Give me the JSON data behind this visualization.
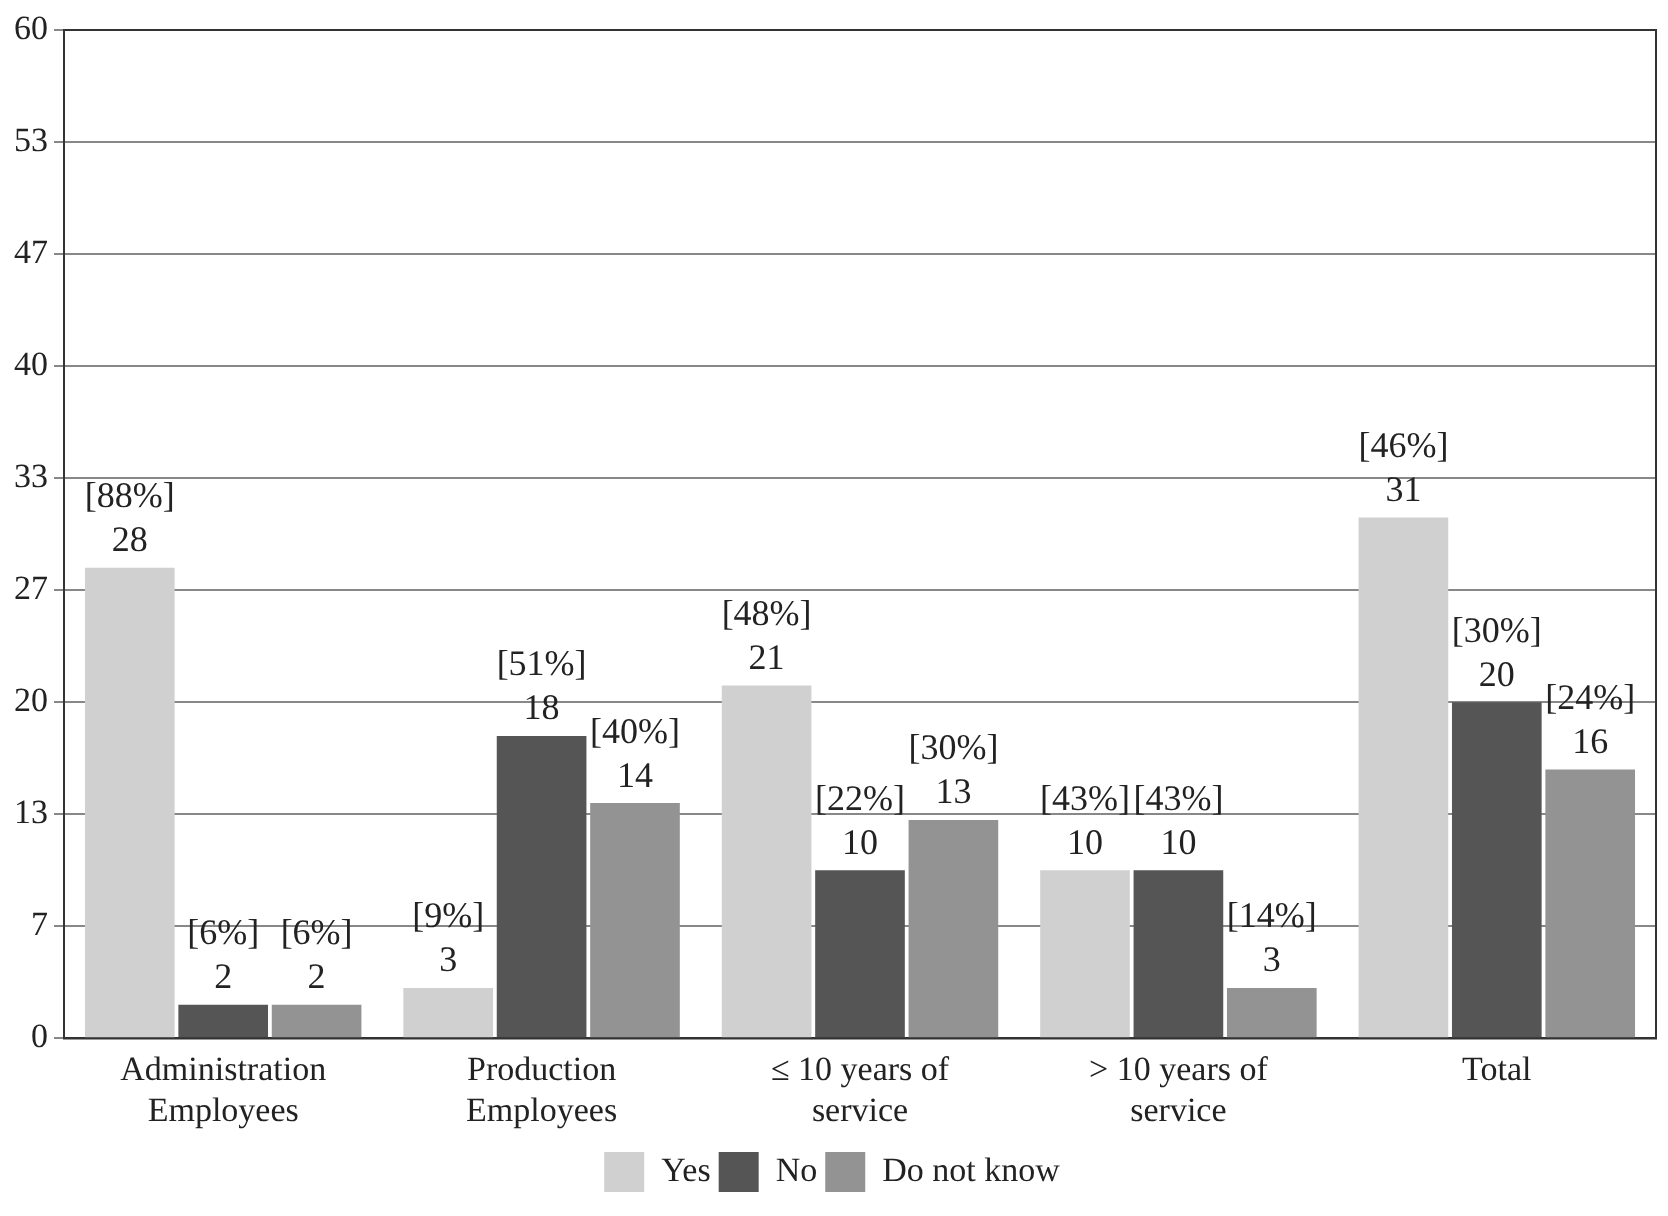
{
  "chart_data": {
    "type": "bar",
    "categories": [
      "Administration Employees",
      "Production Employees",
      "≤ 10 years of service",
      "> 10 years of service",
      "Total"
    ],
    "series": [
      {
        "name": "Yes",
        "color": "#d0d0d0",
        "values": [
          28,
          3,
          21,
          10,
          31
        ],
        "value_labels": [
          "[88%]\n28",
          "[9%]\n3",
          "[48%]\n21",
          "[43%]\n10",
          "[46%]\n31"
        ]
      },
      {
        "name": "No",
        "color": "#555555",
        "values": [
          2,
          18,
          10,
          10,
          20
        ],
        "value_labels": [
          "[6%]\n2",
          "[51%]\n18",
          "[22%]\n10",
          "[43%]\n10",
          "[30%]\n20"
        ]
      },
      {
        "name": "Do not know",
        "color": "#939393",
        "values": [
          2,
          14,
          13,
          3,
          16
        ],
        "value_labels": [
          "[6%]\n2",
          "[40%]\n14",
          "[30%]\n13",
          "[14%]\n3",
          "[24%]\n16"
        ]
      }
    ],
    "ylim": [
      0,
      60
    ],
    "yticks": [
      0,
      {
        "value": 6.667,
        "label": "7"
      },
      {
        "value": 13.333,
        "label": "13"
      },
      20,
      {
        "value": 26.667,
        "label": "27"
      },
      {
        "value": 33.333,
        "label": "33"
      },
      40,
      {
        "value": 46.667,
        "label": "47"
      },
      {
        "value": 53.333,
        "label": "53"
      },
      60
    ],
    "grid": "y",
    "legend": "bottom"
  }
}
